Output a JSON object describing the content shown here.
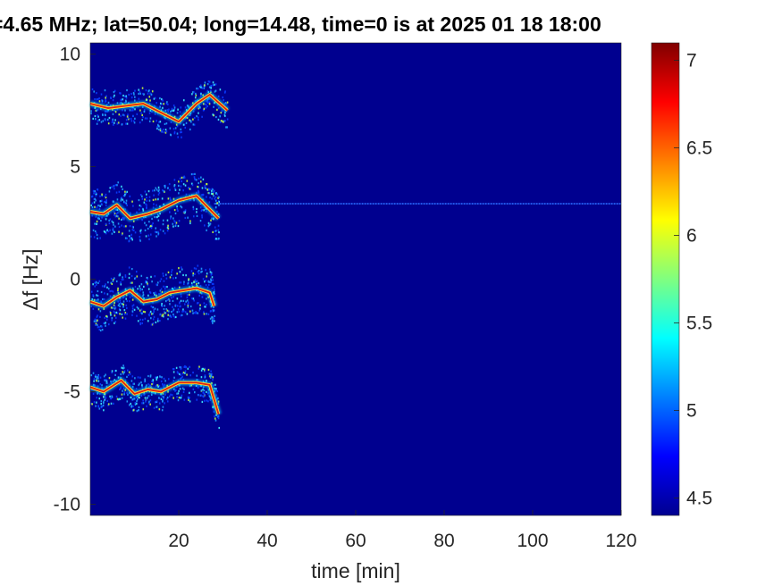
{
  "chart_data": {
    "type": "heatmap",
    "title": "=4.65 MHz;  lat=50.04; long=14.48, time=0 is at 2025 01 18 18:00",
    "xlabel": "time [min]",
    "ylabel": "Δf [Hz]",
    "xlim": [
      0,
      120
    ],
    "ylim": [
      -10.5,
      10.5
    ],
    "xticks": [
      20,
      40,
      60,
      80,
      100,
      120
    ],
    "yticks": [
      10,
      5,
      0,
      -5,
      -10
    ],
    "colormap": "jet",
    "background_color": "#00008f",
    "colorbar": {
      "range": [
        4.4,
        7.1
      ],
      "ticks": [
        7,
        6.5,
        6,
        5.5,
        5,
        4.5
      ]
    },
    "series": [
      {
        "x": [
          0,
          4,
          8,
          12,
          16,
          20,
          24,
          27,
          31
        ],
        "y": [
          7.8,
          7.6,
          7.7,
          7.8,
          7.4,
          7.0,
          7.8,
          8.2,
          7.5
        ]
      },
      {
        "x": [
          0,
          3,
          6,
          9,
          13,
          16,
          20,
          24,
          27,
          29
        ],
        "y": [
          3.0,
          2.9,
          3.3,
          2.7,
          2.9,
          3.1,
          3.5,
          3.7,
          3.1,
          2.7
        ]
      },
      {
        "x": [
          0,
          3,
          6,
          9,
          12,
          15,
          18,
          21,
          24,
          27,
          28
        ],
        "y": [
          -1.0,
          -1.2,
          -0.8,
          -0.5,
          -1.0,
          -0.9,
          -0.6,
          -0.5,
          -0.4,
          -0.6,
          -1.2
        ]
      },
      {
        "x": [
          0,
          3,
          7,
          10,
          13,
          16,
          20,
          24,
          27,
          29
        ],
        "y": [
          -4.8,
          -5.0,
          -4.5,
          -5.1,
          -4.9,
          -5.0,
          -4.6,
          -4.6,
          -4.7,
          -6.0
        ]
      }
    ],
    "constant_line": {
      "y": 3.35,
      "x_range": [
        28,
        120
      ]
    }
  }
}
